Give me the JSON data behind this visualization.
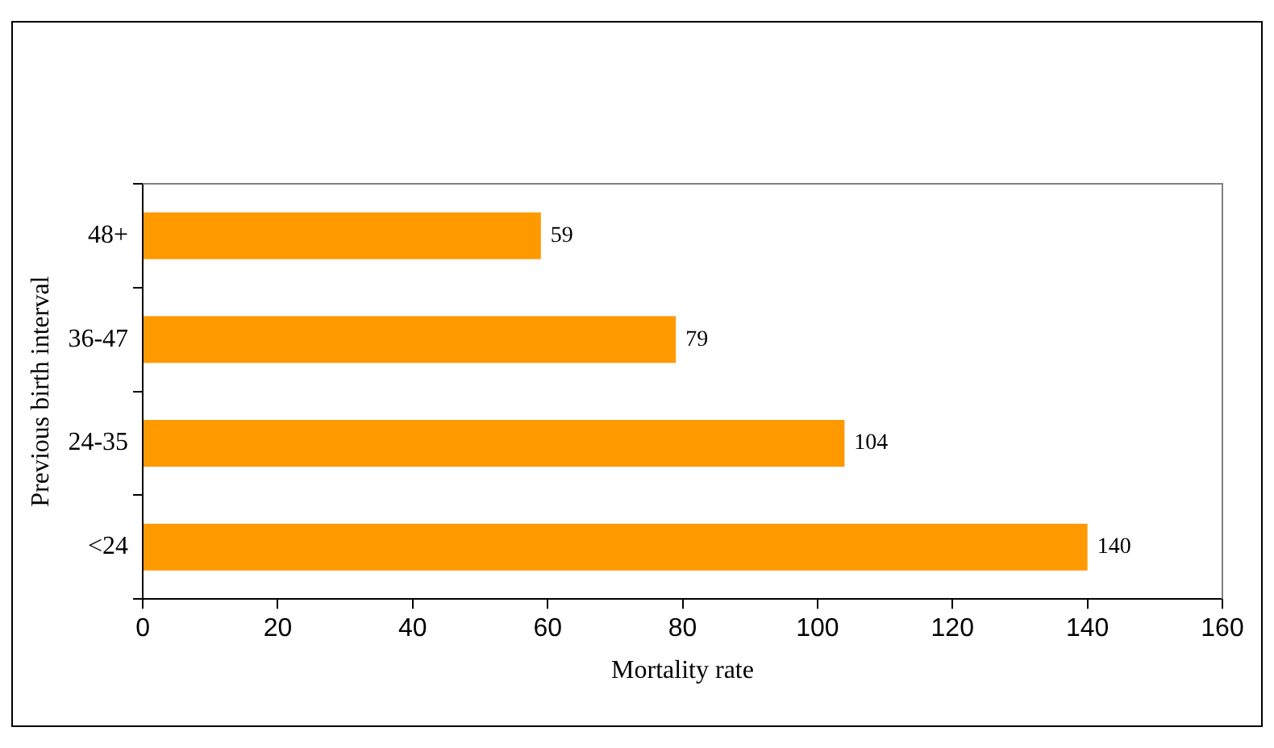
{
  "chart_data": {
    "type": "bar",
    "orientation": "horizontal",
    "categories": [
      "48+",
      "36-47",
      "24-35",
      "<24"
    ],
    "values": [
      59,
      79,
      104,
      140
    ],
    "color": "#ff9900",
    "xlim": [
      0,
      160
    ],
    "xticks": [
      0,
      20,
      40,
      60,
      80,
      100,
      120,
      140,
      160
    ],
    "xlabel": "Mortality rate",
    "ylabel": "Previous birth interval",
    "data_labels": true,
    "grid": false,
    "legend": false
  }
}
